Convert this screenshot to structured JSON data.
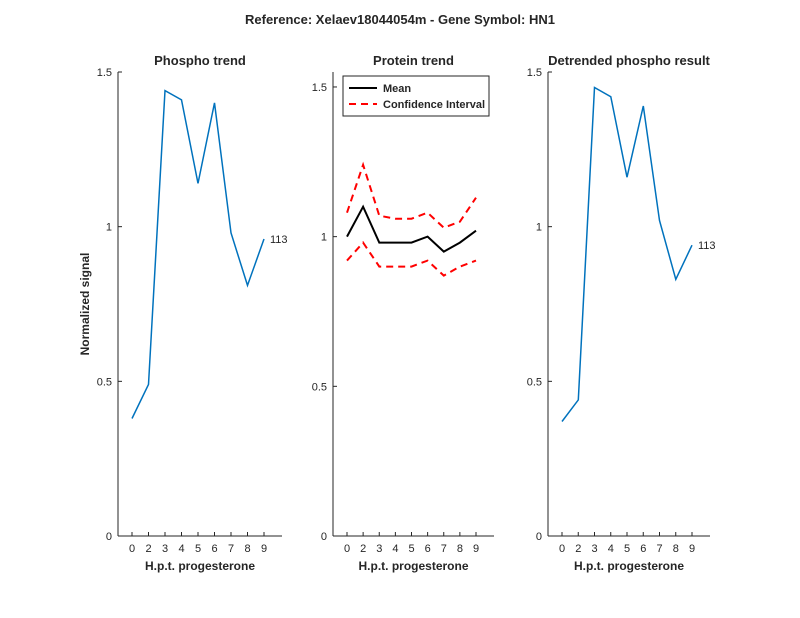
{
  "figure": {
    "title": "Reference:  Xelaev18044054m - Gene Symbol:  HN1"
  },
  "colors": {
    "phospho": "#0072BD",
    "mean": "#000000",
    "ci": "#FF0000",
    "axis": "#262626"
  },
  "chart_data": [
    {
      "type": "line",
      "title": "Phospho trend",
      "xlabel": "H.p.t. progesterone",
      "ylabel": "Normalized signal",
      "categories": [
        "0",
        "2",
        "3",
        "4",
        "5",
        "6",
        "7",
        "8",
        "9"
      ],
      "ylim": [
        0,
        1.5
      ],
      "yticks": [
        0,
        0.5,
        1,
        1.5
      ],
      "ytick_labels": [
        "0",
        "0.5",
        "1",
        "1.5"
      ],
      "series": [
        {
          "values": [
            0.38,
            0.49,
            1.44,
            1.41,
            1.14,
            1.4,
            0.98,
            0.81,
            0.96
          ],
          "end_label": "113"
        }
      ]
    },
    {
      "type": "line",
      "title": "Protein trend",
      "xlabel": "H.p.t. progesterone",
      "ylabel": "",
      "categories": [
        "0",
        "2",
        "3",
        "4",
        "5",
        "6",
        "7",
        "8",
        "9"
      ],
      "ylim": [
        0,
        1.55
      ],
      "yticks": [
        0,
        0.5,
        1,
        1.5
      ],
      "ytick_labels": [
        "0",
        "0.5",
        "1",
        "1.5"
      ],
      "legend": "top-left",
      "series": [
        {
          "name": "Mean",
          "style": "solid",
          "values": [
            1.0,
            1.1,
            0.98,
            0.98,
            0.98,
            1.0,
            0.95,
            0.98,
            1.02
          ]
        },
        {
          "name": "Confidence Interval",
          "style": "dashed",
          "values": [
            1.08,
            1.24,
            1.07,
            1.06,
            1.06,
            1.08,
            1.03,
            1.05,
            1.13
          ]
        },
        {
          "name": "",
          "style": "dashed",
          "values": [
            0.92,
            0.98,
            0.9,
            0.9,
            0.9,
            0.92,
            0.87,
            0.9,
            0.92
          ]
        }
      ]
    },
    {
      "type": "line",
      "title": "Detrended phospho result",
      "xlabel": "H.p.t. progesterone",
      "ylabel": "",
      "categories": [
        "0",
        "2",
        "3",
        "4",
        "5",
        "6",
        "7",
        "8",
        "9"
      ],
      "ylim": [
        0,
        1.5
      ],
      "yticks": [
        0,
        0.5,
        1,
        1.5
      ],
      "ytick_labels": [
        "0",
        "0.5",
        "1",
        "1.5"
      ],
      "series": [
        {
          "values": [
            0.37,
            0.44,
            1.45,
            1.42,
            1.16,
            1.39,
            1.02,
            0.83,
            0.94
          ],
          "end_label": "113"
        }
      ]
    }
  ]
}
